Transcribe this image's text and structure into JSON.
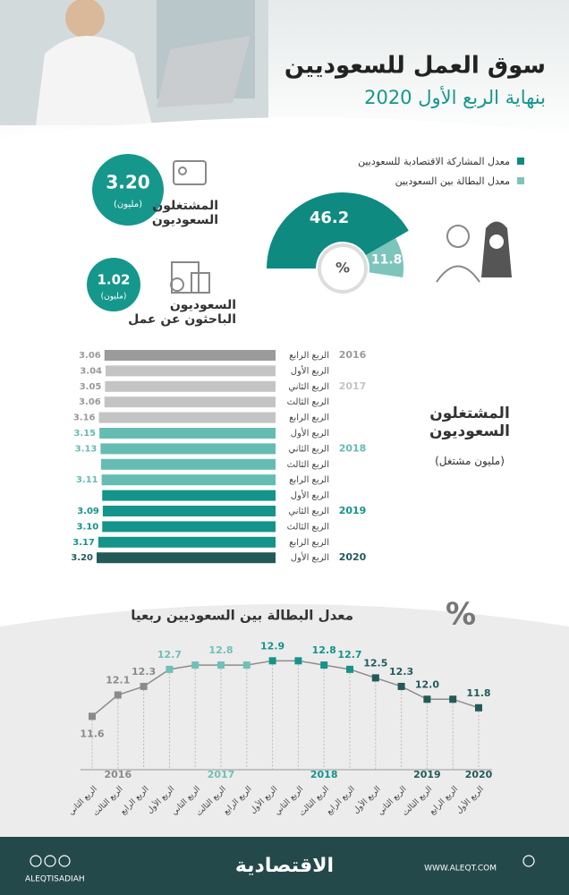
{
  "header": {
    "title": "سوق العمل للسعوديين",
    "subtitle": "بنهاية الربع الأول 2020"
  },
  "stats": [
    {
      "value": "3.20",
      "unit": "(مليون)",
      "label": "المشتغلون السعوديون"
    },
    {
      "value": "1.02",
      "unit": "(مليون)",
      "label": "السعوديون الباحثون عن عمل"
    }
  ],
  "chart_data": [
    {
      "type": "gauge",
      "center_label": "%",
      "series": [
        {
          "name": "معدل المشاركة الاقتصادية للسعوديين",
          "color": "#0f8a80",
          "values": [
            46.2
          ]
        },
        {
          "name": "معدل البطالة بين السعوديين",
          "color": "#7dc4bc",
          "values": [
            11.8
          ]
        }
      ]
    },
    {
      "type": "hbar",
      "title": "المشتغلون السعوديون",
      "subtitle": "(مليون مشتغل)",
      "categories": [
        "الربع الرابع",
        "الربع الأول",
        "الربع الثاني",
        "الربع الثالث",
        "الربع الرابع",
        "الربع الأول",
        "الربع الثاني",
        "الربع الثالث",
        "الربع الرابع",
        "الربع الأول",
        "الربع الثاني",
        "الربع الثالث",
        "الربع الرابع",
        "الربع الأول"
      ],
      "groups": [
        "2016",
        null,
        "2017",
        null,
        null,
        null,
        "2018",
        null,
        null,
        null,
        "2019",
        null,
        null,
        "2020"
      ],
      "values": [
        3.06,
        3.04,
        3.05,
        3.06,
        3.16,
        3.15,
        3.13,
        3.12,
        3.11,
        3.1,
        3.09,
        3.1,
        3.17,
        3.2
      ],
      "value_labels": [
        "3.06",
        "3.04",
        "3.05",
        "3.06",
        "3.16",
        "3.15",
        "3.13",
        null,
        "3.11",
        null,
        "3.09",
        "3.10",
        "3.17",
        "3.20"
      ],
      "colors": [
        "#9b9b9b",
        "#c4c4c4",
        "#c4c4c4",
        "#c4c4c4",
        "#c4c4c4",
        "#64bcb2",
        "#64bcb2",
        "#64bcb2",
        "#64bcb2",
        "#14948a",
        "#14948a",
        "#14948a",
        "#14948a",
        "#24595a"
      ],
      "xlim": [
        0,
        3.2
      ]
    },
    {
      "type": "line",
      "title": "معدل البطالة بين السعوديين ربعيا",
      "unit": "%",
      "categories": [
        "الربع الثاني",
        "الربع الثالث",
        "الربع الرابع",
        "الربع الأول",
        "الربع الثاني",
        "الربع الثالث",
        "الربع الرابع",
        "الربع الأول",
        "الربع الثاني",
        "الربع الثالث",
        "الربع الرابع",
        "الربع الأول",
        "الربع الثاني",
        "الربع الثالث",
        "الربع الرابع",
        "الربع الأول"
      ],
      "groups": [
        null,
        "2016",
        null,
        null,
        null,
        "2017",
        null,
        null,
        null,
        "2018",
        null,
        null,
        null,
        "2019",
        null,
        "2020"
      ],
      "values": [
        11.6,
        12.1,
        12.3,
        12.7,
        12.8,
        12.8,
        12.8,
        12.9,
        12.9,
        12.8,
        12.7,
        12.5,
        12.3,
        12.0,
        12.0,
        11.8
      ],
      "value_labels": [
        "11.6",
        "12.1",
        "12.3",
        "12.7",
        null,
        "12.8",
        null,
        "12.9",
        null,
        "12.8",
        "12.7",
        "12.5",
        "12.3",
        "12.0",
        null,
        "11.8"
      ],
      "colors": [
        "#8a8a8a",
        "#8a8a8a",
        "#8a8a8a",
        "#6fc0b7",
        "#6fc0b7",
        "#6fc0b7",
        "#6fc0b7",
        "#14948a",
        "#14948a",
        "#14948a",
        "#14948a",
        "#24595a",
        "#24595a",
        "#24595a",
        "#24595a",
        "#24595a"
      ],
      "line_color": "#8c8c8c",
      "ylim": [
        11.0,
        13.2
      ]
    }
  ],
  "footer": {
    "brand": "الاقتصادية",
    "handle": "ALEQTISADIAH",
    "site": "WWW.ALEQT.COM"
  }
}
